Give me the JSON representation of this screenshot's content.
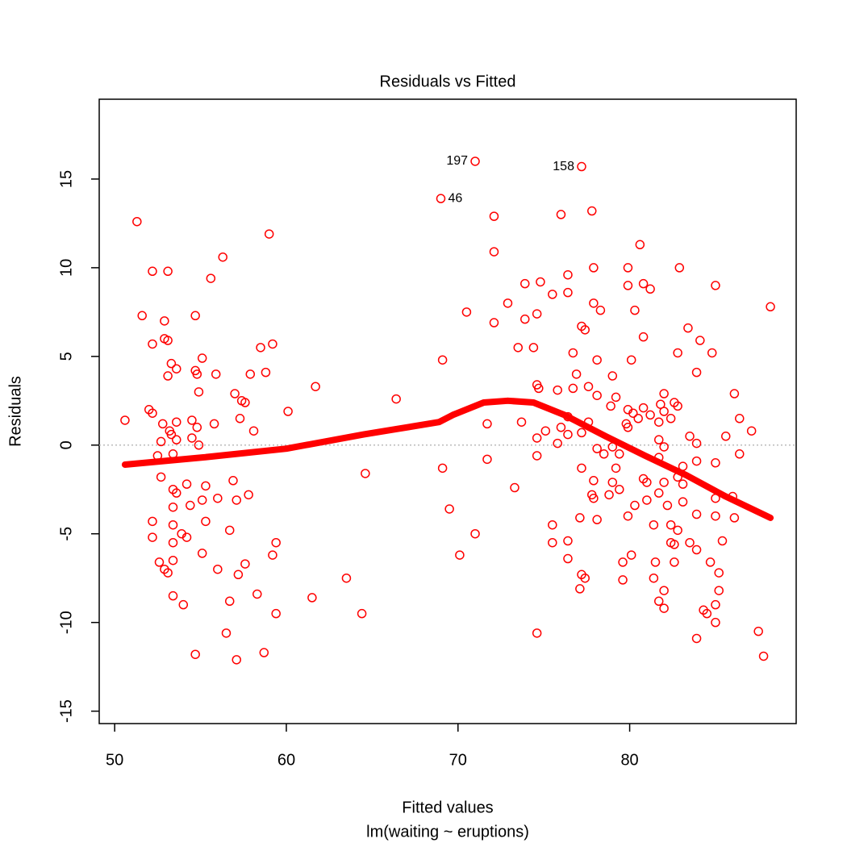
{
  "chart_data": {
    "type": "scatter",
    "title": "Residuals vs Fitted",
    "xlabel": "Fitted values",
    "subtitle": "lm(waiting ~ eruptions)",
    "ylabel": "Residuals",
    "xlim": [
      49.1,
      89.7
    ],
    "ylim": [
      -15.7,
      19.5
    ],
    "xticks": [
      50,
      60,
      70,
      80
    ],
    "yticks": [
      -15,
      -10,
      -5,
      0,
      5,
      10,
      15
    ],
    "hline": 0,
    "color": "#ff0000",
    "series": [
      {
        "name": "points",
        "color": "#ff0000",
        "x": [
          50.6,
          51.3,
          51.6,
          52.0,
          52.2,
          52.2,
          52.2,
          52.2,
          52.2,
          52.5,
          52.6,
          52.7,
          52.7,
          52.8,
          52.9,
          52.9,
          52.9,
          53.1,
          53.1,
          53.1,
          53.1,
          53.2,
          53.3,
          53.3,
          53.4,
          53.4,
          53.4,
          53.4,
          53.4,
          53.4,
          53.4,
          53.6,
          53.6,
          53.6,
          53.6,
          53.9,
          54.0,
          54.2,
          54.2,
          54.4,
          54.5,
          54.5,
          54.7,
          54.7,
          54.7,
          54.8,
          54.8,
          54.9,
          54.9,
          55.1,
          55.1,
          55.1,
          55.3,
          55.3,
          55.6,
          55.8,
          55.9,
          56.0,
          56.0,
          56.3,
          56.5,
          56.7,
          56.7,
          56.9,
          57.0,
          57.1,
          57.1,
          57.2,
          57.3,
          57.4,
          57.6,
          57.6,
          57.8,
          57.9,
          58.1,
          58.3,
          58.5,
          58.7,
          58.8,
          59.0,
          59.2,
          59.2,
          59.4,
          59.4,
          60.1,
          61.7,
          61.5,
          63.5,
          64.4,
          64.6,
          66.4,
          69.0,
          69.1,
          69.1,
          69.5,
          70.1,
          70.5,
          71.0,
          71.0,
          71.7,
          71.7,
          72.1,
          72.1,
          72.1,
          72.9,
          73.3,
          73.5,
          73.7,
          73.9,
          73.9,
          74.4,
          74.6,
          74.6,
          74.6,
          74.6,
          74.6,
          74.7,
          74.8,
          75.1,
          75.5,
          75.5,
          75.5,
          75.8,
          75.8,
          76.0,
          76.0,
          76.4,
          76.4,
          76.4,
          76.4,
          76.4,
          76.4,
          76.7,
          76.7,
          76.9,
          77.1,
          77.1,
          77.2,
          77.2,
          77.2,
          77.2,
          77.2,
          77.4,
          77.4,
          77.6,
          77.6,
          77.8,
          77.8,
          77.9,
          77.9,
          77.9,
          77.9,
          78.1,
          78.1,
          78.1,
          78.1,
          78.3,
          78.5,
          78.8,
          78.9,
          79.0,
          79.0,
          79.0,
          79.2,
          79.2,
          79.4,
          79.4,
          79.6,
          79.6,
          79.8,
          79.9,
          79.9,
          79.9,
          79.9,
          79.9,
          80.1,
          80.1,
          80.2,
          80.3,
          80.3,
          80.5,
          80.6,
          80.8,
          80.8,
          80.8,
          80.8,
          81.0,
          81.0,
          81.2,
          81.2,
          81.4,
          81.4,
          81.5,
          81.7,
          81.7,
          81.7,
          81.7,
          81.7,
          81.8,
          82.0,
          82.0,
          82.0,
          82.0,
          82.0,
          82.0,
          82.2,
          82.4,
          82.4,
          82.4,
          82.6,
          82.6,
          82.6,
          82.8,
          82.8,
          82.8,
          82.8,
          82.9,
          83.1,
          83.1,
          83.1,
          83.4,
          83.5,
          83.5,
          83.9,
          83.9,
          83.9,
          83.9,
          83.9,
          83.9,
          84.1,
          84.3,
          84.5,
          84.7,
          84.8,
          85.0,
          85.0,
          85.0,
          85.0,
          85.0,
          85.0,
          85.2,
          85.2,
          85.4,
          85.6,
          86.0,
          86.1,
          86.1,
          86.4,
          86.4,
          87.1,
          87.5,
          87.8,
          88.2
        ],
        "values": [
          1.4,
          12.6,
          7.3,
          2.0,
          9.8,
          1.8,
          5.7,
          -4.3,
          -5.2,
          -0.6,
          -6.6,
          0.2,
          -1.8,
          1.2,
          7.0,
          6.0,
          -7.0,
          9.8,
          5.9,
          3.9,
          -7.2,
          0.8,
          4.6,
          0.6,
          -0.5,
          -2.5,
          -3.5,
          -4.5,
          -5.5,
          -6.5,
          -8.5,
          4.3,
          1.3,
          0.3,
          -2.7,
          -5.0,
          -9.0,
          -2.2,
          -5.2,
          -3.4,
          1.4,
          0.4,
          7.3,
          4.2,
          -11.8,
          4.0,
          1.0,
          3.0,
          0.0,
          4.9,
          -3.1,
          -6.1,
          -2.3,
          -4.3,
          9.4,
          1.2,
          4.0,
          -3.0,
          -7.0,
          10.6,
          -10.6,
          -4.8,
          -8.8,
          -2.0,
          2.9,
          -3.1,
          -12.1,
          -7.3,
          1.5,
          2.5,
          2.4,
          -6.7,
          -2.8,
          4.0,
          0.8,
          -8.4,
          5.5,
          -11.7,
          4.1,
          11.9,
          5.7,
          -6.2,
          -9.5,
          -5.5,
          1.9,
          3.3,
          -8.6,
          -7.5,
          -9.5,
          -1.6,
          2.6,
          13.9,
          4.8,
          -1.3,
          -3.6,
          -6.2,
          7.5,
          16.0,
          -5.0,
          1.2,
          -0.8,
          12.9,
          10.9,
          6.9,
          8.0,
          -2.4,
          5.5,
          1.3,
          9.1,
          7.1,
          5.5,
          7.4,
          3.4,
          0.4,
          -0.6,
          -10.6,
          3.2,
          9.2,
          0.8,
          8.5,
          -4.5,
          -5.5,
          3.1,
          0.1,
          13.0,
          1.0,
          9.6,
          8.6,
          1.6,
          0.6,
          -5.4,
          -6.4,
          5.2,
          3.2,
          4.0,
          -4.1,
          -8.1,
          15.7,
          6.7,
          0.7,
          -1.3,
          -7.3,
          6.5,
          -7.5,
          1.3,
          3.3,
          13.2,
          -2.8,
          10.0,
          8.0,
          -2.0,
          -3.0,
          4.8,
          2.8,
          -0.2,
          -4.2,
          7.6,
          -0.5,
          -2.8,
          2.2,
          3.9,
          -0.1,
          -2.1,
          2.7,
          -1.3,
          -0.5,
          -2.5,
          -6.6,
          -7.6,
          1.2,
          10.0,
          9.0,
          2.0,
          1.0,
          -4.0,
          4.8,
          -6.2,
          1.8,
          -3.4,
          7.6,
          1.5,
          11.3,
          9.1,
          6.1,
          2.1,
          -1.9,
          -2.1,
          -3.1,
          8.8,
          1.7,
          -4.5,
          -7.5,
          -6.6,
          1.3,
          0.3,
          -0.7,
          -2.7,
          -8.8,
          2.3,
          2.9,
          1.9,
          -0.1,
          -2.1,
          -8.2,
          -9.2,
          -3.4,
          1.5,
          -4.5,
          -5.5,
          2.4,
          -5.6,
          -6.6,
          5.2,
          2.2,
          -1.8,
          -4.8,
          10.0,
          -1.2,
          -2.2,
          -3.2,
          6.6,
          0.5,
          -5.5,
          4.1,
          0.1,
          -0.9,
          -3.9,
          -5.9,
          -10.9,
          5.9,
          -9.3,
          -9.5,
          -6.6,
          5.2,
          9.0,
          -1.0,
          -3.0,
          -4.0,
          -9.0,
          -10.0,
          -7.2,
          -8.2,
          -5.4,
          0.5,
          -2.9,
          2.9,
          -4.1,
          1.5,
          -0.5,
          0.8,
          -10.5,
          -11.9,
          7.8
        ]
      }
    ],
    "smooth": {
      "color": "#ff0000",
      "x": [
        50.6,
        55.1,
        60.0,
        64.5,
        66.4,
        68.9,
        69.7,
        71.5,
        72.9,
        74.4,
        76.2,
        78.6,
        80.9,
        83.3,
        85.6,
        88.2
      ],
      "values": [
        -1.1,
        -0.7,
        -0.2,
        0.6,
        0.9,
        1.3,
        1.7,
        2.4,
        2.5,
        2.4,
        1.7,
        0.5,
        -0.6,
        -1.7,
        -2.9,
        -4.1
      ]
    },
    "annotations": [
      {
        "text": "46",
        "x": 69.0,
        "y": 13.9
      },
      {
        "text": "197",
        "x": 71.0,
        "y": 16.0
      },
      {
        "text": "158",
        "x": 77.2,
        "y": 15.7
      }
    ]
  }
}
